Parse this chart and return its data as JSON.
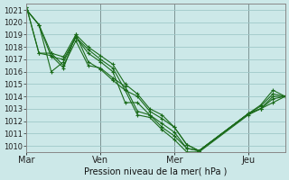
{
  "title": "Pression niveau de la mer( hPa )",
  "background_color": "#cce8e8",
  "grid_color": "#9fc8c8",
  "line_color": "#1a6b1a",
  "ylim": [
    1009.5,
    1021.5
  ],
  "yticks": [
    1010,
    1011,
    1012,
    1013,
    1014,
    1015,
    1016,
    1017,
    1018,
    1019,
    1020,
    1021
  ],
  "xlim": [
    0,
    252
  ],
  "day_ticks": [
    0,
    72,
    144,
    216
  ],
  "day_labels": [
    "Mar",
    "Ven",
    "Mer",
    "Jeu"
  ],
  "vline_positions": [
    72,
    144,
    216
  ],
  "lines": [
    {
      "x": [
        0,
        12,
        24,
        36,
        48,
        60,
        72,
        84,
        96,
        108,
        120,
        132,
        144,
        156,
        168,
        216,
        228,
        240,
        252
      ],
      "y": [
        1021.0,
        1019.8,
        1017.5,
        1017.2,
        1019.0,
        1018.0,
        1017.3,
        1016.6,
        1015.0,
        1014.2,
        1013.0,
        1012.5,
        1011.5,
        1010.1,
        1009.6,
        1012.6,
        1013.3,
        1014.5,
        1014.0
      ]
    },
    {
      "x": [
        0,
        12,
        24,
        36,
        48,
        60,
        72,
        84,
        96,
        108,
        120,
        132,
        144,
        156,
        168,
        216,
        228,
        240,
        252
      ],
      "y": [
        1021.0,
        1019.8,
        1017.2,
        1017.0,
        1018.8,
        1017.8,
        1017.0,
        1016.3,
        1014.5,
        1014.0,
        1012.8,
        1012.2,
        1011.5,
        1010.1,
        1009.6,
        1012.6,
        1013.2,
        1014.2,
        1014.0
      ]
    },
    {
      "x": [
        0,
        12,
        24,
        36,
        48,
        60,
        72,
        84,
        96,
        108,
        120,
        132,
        144,
        156,
        168,
        216,
        228,
        240,
        252
      ],
      "y": [
        1021.0,
        1019.8,
        1016.0,
        1016.8,
        1018.8,
        1017.5,
        1016.8,
        1016.0,
        1013.5,
        1013.5,
        1012.5,
        1011.8,
        1011.1,
        1009.8,
        1009.6,
        1012.6,
        1013.0,
        1014.0,
        1014.0
      ]
    },
    {
      "x": [
        0,
        12,
        24,
        36,
        48,
        60,
        72,
        84,
        96,
        108,
        120,
        132,
        144,
        156,
        168,
        216,
        228,
        240,
        252
      ],
      "y": [
        1021.2,
        1017.5,
        1017.5,
        1016.5,
        1018.5,
        1016.5,
        1016.3,
        1015.5,
        1014.8,
        1012.8,
        1012.5,
        1011.5,
        1010.8,
        1009.8,
        1009.6,
        1012.6,
        1013.0,
        1013.8,
        1014.0
      ]
    },
    {
      "x": [
        0,
        12,
        24,
        36,
        48,
        60,
        72,
        84,
        96,
        108,
        120,
        132,
        144,
        156,
        168,
        216,
        228,
        240,
        252
      ],
      "y": [
        1021.2,
        1017.5,
        1017.3,
        1016.3,
        1019.0,
        1016.8,
        1016.2,
        1015.3,
        1014.5,
        1012.5,
        1012.3,
        1011.3,
        1010.5,
        1009.5,
        1009.5,
        1012.5,
        1013.0,
        1013.5,
        1014.0
      ]
    }
  ],
  "xlabel_fontsize": 7,
  "ylabel_fontsize": 6,
  "title_fontsize": 7
}
